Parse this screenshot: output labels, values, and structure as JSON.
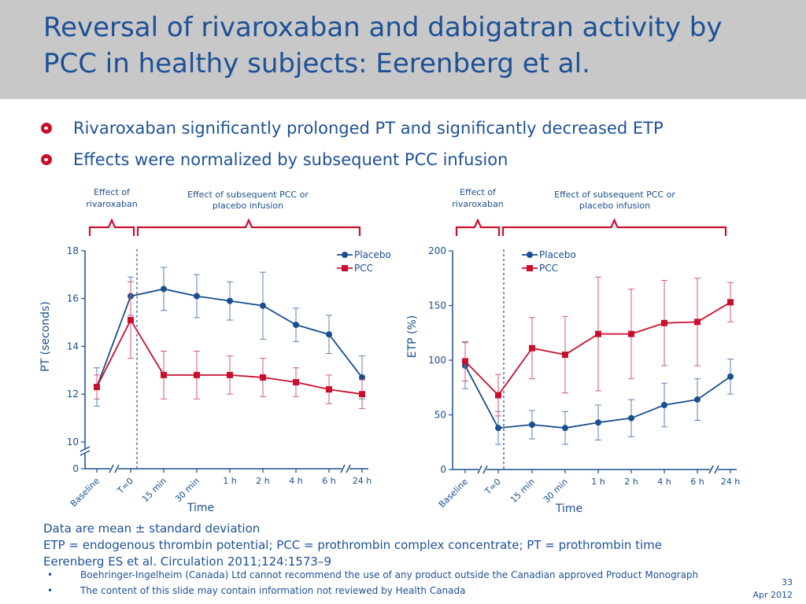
{
  "slide": {
    "title_line1": "Reversal of rivaroxaban and dabigatran activity by",
    "title_line2": "PCC in healthy subjects: Eerenberg et al.",
    "bullets": [
      "Rivaroxaban significantly prolonged PT and significantly decreased ETP",
      "Effects were normalized by subsequent PCC infusion"
    ],
    "footnotes": [
      "Data are mean ± standard deviation",
      "ETP = endogenous thrombin potential; PCC = prothrombin complex concentrate; PT = prothrombin time",
      "Eerenberg ES et al. Circulation 2011;124:1573–9"
    ],
    "disclaimers": [
      "Boehringer-Ingelheim (Canada) Ltd cannot recommend the use of any product outside the Canadian approved Product Monograph",
      "The content of this slide may contain information not reviewed by Health Canada"
    ],
    "page_number": "33",
    "date": "Apr 2012"
  },
  "colors": {
    "placebo": "#1a4e8e",
    "pcc": "#c8102e",
    "title_bg": "#c8c8c8",
    "text": "#1d5195"
  },
  "chart_data": [
    {
      "type": "line",
      "bracket_labels": {
        "effect_of": [
          "Effect of",
          "rivaroxaban"
        ],
        "subsequent": [
          "Effect of subsequent PCC or",
          "placebo infusion"
        ]
      },
      "categories": [
        "Baseline",
        "T=0",
        "15 min",
        "30 min",
        "1 h",
        "2 h",
        "4 h",
        "6 h",
        "24 h"
      ],
      "ylabel": "PT (seconds)",
      "xlabel": "Time",
      "yticks": [
        0,
        10,
        12,
        14,
        16,
        18
      ],
      "ylim": [
        10,
        18
      ],
      "y_axis_break": true,
      "legend_position": "top-right",
      "series": [
        {
          "name": "Placebo",
          "values": [
            12.3,
            16.1,
            16.4,
            16.1,
            15.9,
            15.7,
            14.9,
            14.5,
            12.7
          ],
          "sd": [
            0.8,
            0.8,
            0.9,
            0.9,
            0.8,
            1.4,
            0.7,
            0.8,
            0.9
          ]
        },
        {
          "name": "PCC",
          "values": [
            12.3,
            15.1,
            12.8,
            12.8,
            12.8,
            12.7,
            12.5,
            12.2,
            12.0
          ],
          "sd": [
            0.5,
            1.6,
            1.0,
            1.0,
            0.8,
            0.8,
            0.6,
            0.6,
            0.6
          ]
        }
      ]
    },
    {
      "type": "line",
      "bracket_labels": {
        "effect_of": [
          "Effect of",
          "rivaroxaban"
        ],
        "subsequent": [
          "Effect of subsequent PCC or",
          "placebo infusion"
        ]
      },
      "categories": [
        "Baseline",
        "T=0",
        "15 min",
        "30 min",
        "1 h",
        "2 h",
        "4 h",
        "6 h",
        "24 h"
      ],
      "ylabel": "ETP (%)",
      "xlabel": "Time",
      "yticks": [
        0,
        50,
        100,
        150,
        200
      ],
      "ylim": [
        0,
        200
      ],
      "legend_position": "top-right",
      "series": [
        {
          "name": "Placebo",
          "values": [
            95,
            38,
            41,
            38,
            43,
            47,
            59,
            64,
            85
          ],
          "sd": [
            21,
            15,
            13,
            15,
            16,
            17,
            20,
            19,
            16
          ]
        },
        {
          "name": "PCC",
          "values": [
            99,
            68,
            111,
            105,
            124,
            124,
            134,
            135,
            153
          ],
          "sd": [
            18,
            19,
            28,
            35,
            52,
            41,
            39,
            40,
            18
          ]
        }
      ]
    }
  ]
}
